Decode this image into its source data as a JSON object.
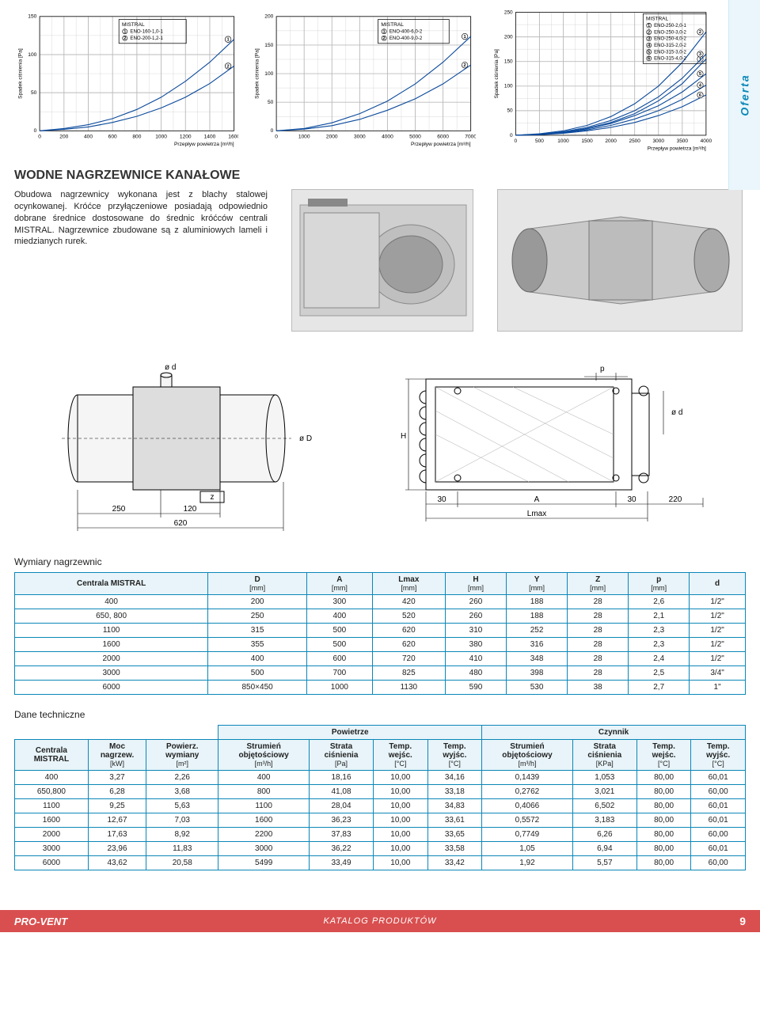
{
  "tab_label": "Oferta",
  "charts": {
    "y_label": "Spadek ciśnienia [Pa]",
    "x_label": "Przepływ powietrza [m³/h]",
    "c1": {
      "title": "MISTRAL",
      "legend": [
        "ENO-160-1,0-1",
        "ENO-200-1,2-1"
      ],
      "xlim": [
        0,
        1600
      ],
      "xtick_step": 200,
      "ylim": [
        0,
        150
      ],
      "ytick_step": 50,
      "series": [
        [
          [
            0,
            0
          ],
          [
            200,
            3
          ],
          [
            400,
            8
          ],
          [
            600,
            16
          ],
          [
            800,
            28
          ],
          [
            1000,
            44
          ],
          [
            1200,
            65
          ],
          [
            1400,
            90
          ],
          [
            1600,
            120
          ]
        ],
        [
          [
            0,
            0
          ],
          [
            200,
            2
          ],
          [
            400,
            5
          ],
          [
            600,
            11
          ],
          [
            800,
            19
          ],
          [
            1000,
            30
          ],
          [
            1200,
            44
          ],
          [
            1400,
            62
          ],
          [
            1600,
            85
          ]
        ]
      ],
      "curve_color": "#163d8a",
      "grid_color": "#bbbbbb"
    },
    "c2": {
      "title": "MISTRAL",
      "legend": [
        "ENO-400-6,0-2",
        "ENO-400-9,0-2"
      ],
      "xlim": [
        0,
        7000
      ],
      "xtick_step": 1000,
      "ylim": [
        0,
        200
      ],
      "ytick_step": 50,
      "series": [
        [
          [
            0,
            0
          ],
          [
            1000,
            4
          ],
          [
            2000,
            14
          ],
          [
            3000,
            30
          ],
          [
            4000,
            52
          ],
          [
            5000,
            82
          ],
          [
            6000,
            120
          ],
          [
            7000,
            165
          ]
        ],
        [
          [
            0,
            0
          ],
          [
            1000,
            3
          ],
          [
            2000,
            9
          ],
          [
            3000,
            20
          ],
          [
            4000,
            36
          ],
          [
            5000,
            56
          ],
          [
            6000,
            82
          ],
          [
            7000,
            115
          ]
        ]
      ],
      "curve_color": "#163d8a",
      "grid_color": "#bbbbbb"
    },
    "c3": {
      "title": "MISTRAL",
      "legend": [
        "ENO-250-2,0-1",
        "ENO-250-3,0-2",
        "ENO-250-4,0-2",
        "ENO-315-2,0-2",
        "ENO-315-3,0-2",
        "ENO-315-4,0-2"
      ],
      "xlim": [
        0,
        4000
      ],
      "xtick_step": 500,
      "ylim": [
        0,
        250
      ],
      "ytick_step": 50,
      "series": [
        [
          [
            0,
            0
          ],
          [
            500,
            2
          ],
          [
            1000,
            6
          ],
          [
            1500,
            14
          ],
          [
            2000,
            26
          ],
          [
            2500,
            44
          ],
          [
            3000,
            70
          ],
          [
            3500,
            105
          ],
          [
            4000,
            155
          ]
        ],
        [
          [
            0,
            0
          ],
          [
            500,
            3
          ],
          [
            1000,
            9
          ],
          [
            1500,
            20
          ],
          [
            2000,
            38
          ],
          [
            2500,
            64
          ],
          [
            3000,
            100
          ],
          [
            3500,
            148
          ],
          [
            4000,
            210
          ]
        ],
        [
          [
            0,
            0
          ],
          [
            500,
            2
          ],
          [
            1000,
            7
          ],
          [
            1500,
            16
          ],
          [
            2000,
            30
          ],
          [
            2500,
            50
          ],
          [
            3000,
            78
          ],
          [
            3500,
            116
          ],
          [
            4000,
            165
          ]
        ],
        [
          [
            0,
            0
          ],
          [
            500,
            1.5
          ],
          [
            1000,
            5
          ],
          [
            1500,
            11
          ],
          [
            2000,
            20
          ],
          [
            2500,
            33
          ],
          [
            3000,
            50
          ],
          [
            3500,
            73
          ],
          [
            4000,
            102
          ]
        ],
        [
          [
            0,
            0
          ],
          [
            500,
            2
          ],
          [
            1000,
            6
          ],
          [
            1500,
            13
          ],
          [
            2000,
            24
          ],
          [
            2500,
            40
          ],
          [
            3000,
            60
          ],
          [
            3500,
            88
          ],
          [
            4000,
            125
          ]
        ],
        [
          [
            0,
            0
          ],
          [
            500,
            1
          ],
          [
            1000,
            4
          ],
          [
            1500,
            9
          ],
          [
            2000,
            16
          ],
          [
            2500,
            26
          ],
          [
            3000,
            40
          ],
          [
            3500,
            58
          ],
          [
            4000,
            82
          ]
        ]
      ],
      "curve_color": "#163d8a",
      "grid_color": "#bbbbbb"
    }
  },
  "section_heading": "WODNE NAGRZEWNICE KANAŁOWE",
  "body_text": "Obudowa nagrzewnicy wykonana jest z blachy stalowej ocynkowanej. Króćce przyłączeniowe posiadają odpowiednio dobrane średnice dostosowane do średnic króćców centrali MISTRAL. Nagrzewnice zbudowane są z aluminiowych lameli i miedzianych rurek.",
  "drawing": {
    "labels": {
      "od": "ø d",
      "oD": "ø D",
      "z": "z",
      "H": "H",
      "A": "A",
      "Lmax": "Lmax",
      "p": "p"
    },
    "dim_values": {
      "left": "250",
      "mid": "120",
      "bottom": "620",
      "coil30a": "30",
      "coil30b": "30",
      "coil220": "220"
    }
  },
  "table1": {
    "title": "Wymiary nagrzewnic",
    "columns": [
      "Centrala MISTRAL",
      "D [mm]",
      "A [mm]",
      "Lmax [mm]",
      "H [mm]",
      "Y [mm]",
      "Z [mm]",
      "p [mm]",
      "d"
    ],
    "rows": [
      [
        "400",
        "200",
        "300",
        "420",
        "260",
        "188",
        "28",
        "2,6",
        "1/2\""
      ],
      [
        "650, 800",
        "250",
        "400",
        "520",
        "260",
        "188",
        "28",
        "2,1",
        "1/2\""
      ],
      [
        "1100",
        "315",
        "500",
        "620",
        "310",
        "252",
        "28",
        "2,3",
        "1/2\""
      ],
      [
        "1600",
        "355",
        "500",
        "620",
        "380",
        "316",
        "28",
        "2,3",
        "1/2\""
      ],
      [
        "2000",
        "400",
        "600",
        "720",
        "410",
        "348",
        "28",
        "2,4",
        "1/2\""
      ],
      [
        "3000",
        "500",
        "700",
        "825",
        "480",
        "398",
        "28",
        "2,5",
        "3/4\""
      ],
      [
        "6000",
        "850×450",
        "1000",
        "1130",
        "590",
        "530",
        "38",
        "2,7",
        "1\""
      ]
    ]
  },
  "table2": {
    "title": "Dane techniczne",
    "group_headers": [
      "",
      "",
      "",
      "Powietrze",
      "Czynnik"
    ],
    "columns": [
      {
        "l": "Centrala MISTRAL",
        "u": ""
      },
      {
        "l": "Moc nagrzew.",
        "u": "[kW]"
      },
      {
        "l": "Powierz. wymiany",
        "u": "[m²]"
      },
      {
        "l": "Strumień objętościowy",
        "u": "[m³/h]"
      },
      {
        "l": "Strata ciśnienia",
        "u": "[Pa]"
      },
      {
        "l": "Temp. wejśc.",
        "u": "[°C]"
      },
      {
        "l": "Temp. wyjśc.",
        "u": "[°C]"
      },
      {
        "l": "Strumień objętościowy",
        "u": "[m³/h]"
      },
      {
        "l": "Strata ciśnienia",
        "u": "[KPa]"
      },
      {
        "l": "Temp. wejśc.",
        "u": "[°C]"
      },
      {
        "l": "Temp. wyjśc.",
        "u": "[°C]"
      }
    ],
    "rows": [
      [
        "400",
        "3,27",
        "2,26",
        "400",
        "18,16",
        "10,00",
        "34,16",
        "0,1439",
        "1,053",
        "80,00",
        "60,01"
      ],
      [
        "650,800",
        "6,28",
        "3,68",
        "800",
        "41,08",
        "10,00",
        "33,18",
        "0,2762",
        "3,021",
        "80,00",
        "60,00"
      ],
      [
        "1100",
        "9,25",
        "5,63",
        "1100",
        "28,04",
        "10,00",
        "34,83",
        "0,4066",
        "6,502",
        "80,00",
        "60,01"
      ],
      [
        "1600",
        "12,67",
        "7,03",
        "1600",
        "36,23",
        "10,00",
        "33,61",
        "0,5572",
        "3,183",
        "80,00",
        "60,01"
      ],
      [
        "2000",
        "17,63",
        "8,92",
        "2200",
        "37,83",
        "10,00",
        "33,65",
        "0,7749",
        "6,26",
        "80,00",
        "60,00"
      ],
      [
        "3000",
        "23,96",
        "11,83",
        "3000",
        "36,22",
        "10,00",
        "33,58",
        "1,05",
        "6,94",
        "80,00",
        "60,01"
      ],
      [
        "6000",
        "43,62",
        "20,58",
        "5499",
        "33,49",
        "10,00",
        "33,42",
        "1,92",
        "5,57",
        "80,00",
        "60,00"
      ]
    ]
  },
  "footer": {
    "logo": "PRO-VENT",
    "center": "KATALOG PRODUKTÓW",
    "page": "9"
  }
}
